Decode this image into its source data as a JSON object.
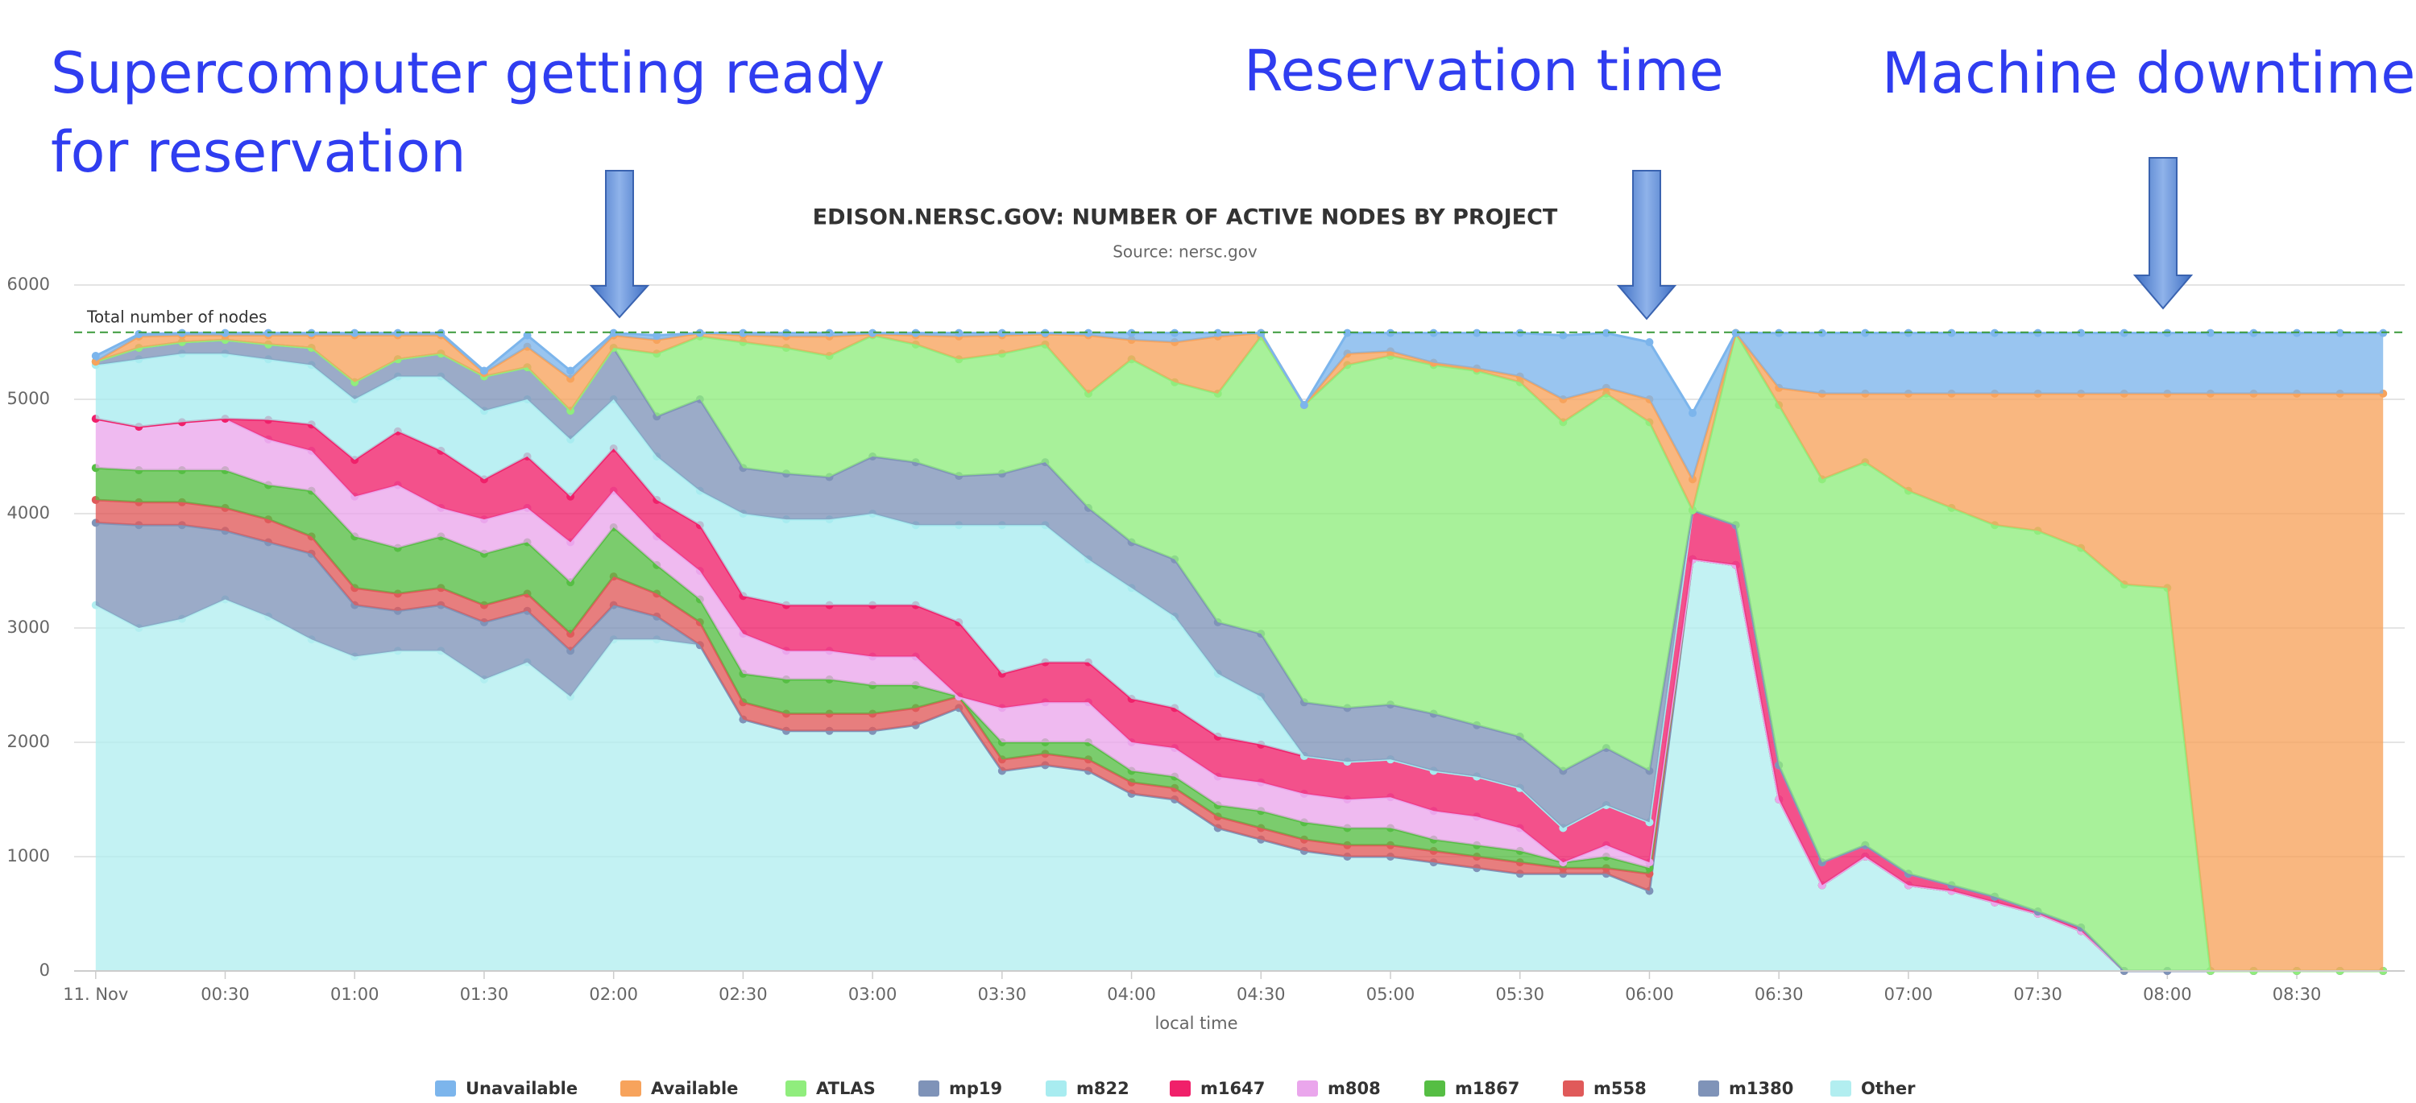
{
  "chart_data": {
    "type": "area",
    "stacked": true,
    "title": "EDISON.NERSC.GOV: NUMBER OF ACTIVE NODES BY PROJECT",
    "subtitle": "Source: nersc.gov",
    "x_label": "local time",
    "annotations": [
      {
        "lines": [
          "Supercomputer getting ready",
          "for reservation"
        ]
      },
      {
        "lines": [
          "Reservation time"
        ]
      },
      {
        "lines": [
          "Machine downtime"
        ]
      }
    ],
    "reference_line": {
      "label": "Total number of nodes",
      "value": 5586,
      "color": "#3a9a3a"
    },
    "x": [
      0,
      10,
      20,
      30,
      40,
      50,
      60,
      70,
      80,
      90,
      100,
      110,
      120,
      130,
      140,
      150,
      160,
      170,
      180,
      190,
      200,
      210,
      220,
      230,
      240,
      250,
      260,
      270,
      280,
      290,
      300,
      310,
      320,
      330,
      340,
      350,
      360,
      370,
      380,
      390,
      400,
      410,
      420,
      430,
      440,
      450,
      460,
      470,
      480,
      490,
      500,
      510,
      520,
      530
    ],
    "xlim": [
      -5,
      535
    ],
    "xticks": [
      {
        "value": 0,
        "label": "11. Nov"
      },
      {
        "value": 30,
        "label": "00:30"
      },
      {
        "value": 60,
        "label": "01:00"
      },
      {
        "value": 90,
        "label": "01:30"
      },
      {
        "value": 120,
        "label": "02:00"
      },
      {
        "value": 150,
        "label": "02:30"
      },
      {
        "value": 180,
        "label": "03:00"
      },
      {
        "value": 210,
        "label": "03:30"
      },
      {
        "value": 240,
        "label": "04:00"
      },
      {
        "value": 270,
        "label": "04:30"
      },
      {
        "value": 300,
        "label": "05:00"
      },
      {
        "value": 330,
        "label": "05:30"
      },
      {
        "value": 360,
        "label": "06:00"
      },
      {
        "value": 390,
        "label": "06:30"
      },
      {
        "value": 420,
        "label": "07:00"
      },
      {
        "value": 450,
        "label": "07:30"
      },
      {
        "value": 480,
        "label": "08:00"
      },
      {
        "value": 510,
        "label": "08:30"
      }
    ],
    "ylim": [
      0,
      6000
    ],
    "yticks": [
      0,
      1000,
      2000,
      3000,
      4000,
      5000,
      6000
    ],
    "grid": true,
    "series": [
      {
        "name": "Unavailable",
        "color": "#7cb5ec",
        "values": [
          50,
          20,
          20,
          20,
          20,
          20,
          20,
          20,
          20,
          20,
          100,
          70,
          20,
          40,
          0,
          20,
          30,
          30,
          10,
          20,
          30,
          20,
          10,
          20,
          60,
          80,
          30,
          0,
          0,
          180,
          160,
          260,
          310,
          380,
          560,
          480,
          500,
          580,
          0,
          480,
          530,
          530,
          530,
          530,
          530,
          530,
          530,
          530,
          530,
          530,
          530,
          530,
          530,
          530
        ]
      },
      {
        "name": "Available",
        "color": "#f7a35c",
        "values": [
          0,
          100,
          60,
          40,
          80,
          110,
          410,
          210,
          160,
          30,
          180,
          280,
          110,
          120,
          30,
          60,
          100,
          170,
          10,
          80,
          200,
          160,
          90,
          510,
          170,
          350,
          500,
          30,
          0,
          100,
          40,
          20,
          20,
          50,
          200,
          50,
          200,
          270,
          0,
          150,
          750,
          600,
          850,
          1000,
          1150,
          1200,
          1350,
          1670,
          1700,
          5050,
          5050,
          5050,
          5050,
          5050
        ]
      },
      {
        "name": "ATLAS",
        "color": "#90ed7d",
        "values": [
          0,
          0,
          0,
          0,
          0,
          0,
          0,
          0,
          0,
          0,
          0,
          0,
          0,
          550,
          550,
          1100,
          1100,
          1060,
          1060,
          1030,
          1020,
          1050,
          1030,
          1000,
          1600,
          1550,
          2000,
          2600,
          2600,
          3000,
          3050,
          3050,
          3100,
          3100,
          3050,
          3100,
          3050,
          0,
          1680,
          3150,
          3350,
          3350,
          3350,
          3300,
          3250,
          3330,
          3320,
          3380,
          3350,
          0,
          0,
          0,
          0,
          0
        ]
      },
      {
        "name": "mp19",
        "color": "#7f93b8",
        "values": [
          30,
          100,
          100,
          120,
          130,
          150,
          150,
          150,
          200,
          300,
          280,
          250,
          450,
          350,
          800,
          400,
          400,
          370,
          500,
          550,
          430,
          450,
          550,
          450,
          400,
          500,
          450,
          550,
          470,
          470,
          480,
          500,
          450,
          450,
          500,
          500,
          450,
          0,
          0,
          0,
          0,
          0,
          0,
          0,
          0,
          0,
          0,
          0,
          0,
          0,
          0,
          0,
          0,
          0
        ]
      },
      {
        "name": "m822",
        "color": "#a8ecf0",
        "values": [
          470,
          590,
          600,
          570,
          530,
          520,
          530,
          480,
          650,
          600,
          500,
          500,
          430,
          380,
          300,
          720,
          750,
          750,
          800,
          700,
          850,
          1300,
          1200,
          900,
          970,
          800,
          550,
          420,
          0,
          0,
          0,
          0,
          0,
          0,
          0,
          0,
          0,
          0,
          0,
          0,
          0,
          0,
          0,
          0,
          0,
          0,
          0,
          0,
          0,
          0,
          0,
          0,
          0,
          0
        ]
      },
      {
        "name": "m1647",
        "color": "#f0206a",
        "values": [
          0,
          0,
          0,
          0,
          170,
          230,
          320,
          470,
          500,
          350,
          450,
          400,
          370,
          320,
          400,
          330,
          400,
          400,
          450,
          450,
          650,
          300,
          350,
          350,
          380,
          350,
          350,
          330,
          330,
          330,
          330,
          350,
          350,
          350,
          300,
          350,
          350,
          430,
          350,
          300,
          200,
          100,
          100,
          50,
          50,
          20,
          30,
          0,
          0,
          0,
          0,
          0,
          0,
          0
        ]
      },
      {
        "name": "m808",
        "color": "#eaa6ec",
        "values": [
          430,
          380,
          420,
          450,
          400,
          350,
          350,
          550,
          250,
          300,
          300,
          350,
          320,
          250,
          250,
          350,
          250,
          250,
          250,
          250,
          0,
          300,
          350,
          350,
          250,
          250,
          250,
          250,
          250,
          250,
          270,
          250,
          250,
          200,
          0,
          100,
          50,
          0,
          0,
          0,
          0,
          0,
          0,
          0,
          0,
          0,
          0,
          0,
          0,
          0,
          0,
          0,
          0,
          0
        ]
      },
      {
        "name": "m1867",
        "color": "#56be44",
        "values": [
          280,
          280,
          280,
          330,
          300,
          400,
          450,
          400,
          450,
          450,
          450,
          450,
          430,
          250,
          200,
          250,
          300,
          300,
          250,
          200,
          0,
          150,
          100,
          150,
          100,
          100,
          100,
          150,
          150,
          150,
          150,
          100,
          100,
          100,
          50,
          100,
          50,
          0,
          0,
          0,
          0,
          0,
          0,
          0,
          0,
          0,
          0,
          0,
          0,
          0,
          0,
          0,
          0,
          0
        ]
      },
      {
        "name": "m558",
        "color": "#e05a5a",
        "values": [
          200,
          200,
          200,
          200,
          200,
          150,
          150,
          150,
          150,
          150,
          150,
          150,
          250,
          200,
          200,
          150,
          150,
          150,
          150,
          150,
          100,
          100,
          100,
          100,
          100,
          100,
          100,
          100,
          100,
          100,
          100,
          100,
          100,
          100,
          50,
          50,
          150,
          0,
          0,
          0,
          0,
          0,
          0,
          0,
          0,
          0,
          0,
          0,
          0,
          0,
          0,
          0,
          0,
          0
        ]
      },
      {
        "name": "m1380",
        "color": "#7f93b8",
        "values": [
          720,
          900,
          820,
          600,
          650,
          750,
          450,
          350,
          400,
          500,
          450,
          400,
          300,
          200,
          0,
          0,
          0,
          0,
          0,
          0,
          0,
          0,
          0,
          0,
          0,
          0,
          0,
          0,
          0,
          0,
          0,
          0,
          0,
          0,
          0,
          0,
          0,
          0,
          0,
          0,
          0,
          0,
          0,
          0,
          0,
          0,
          0,
          0,
          0,
          0,
          0,
          0,
          0,
          0
        ]
      },
      {
        "name": "Other",
        "color": "#b2eef0",
        "values": [
          3200,
          3000,
          3080,
          3250,
          3100,
          2900,
          2750,
          2800,
          2800,
          2550,
          2700,
          2400,
          2900,
          2900,
          2850,
          2200,
          2100,
          2100,
          2100,
          2150,
          2300,
          1750,
          1800,
          1750,
          1550,
          1500,
          1250,
          1150,
          1050,
          1000,
          1000,
          950,
          900,
          850,
          850,
          850,
          700,
          3600,
          3550,
          1500,
          750,
          1000,
          750,
          700,
          600,
          500,
          350,
          0,
          0,
          0,
          0,
          0,
          0,
          0
        ]
      }
    ]
  }
}
